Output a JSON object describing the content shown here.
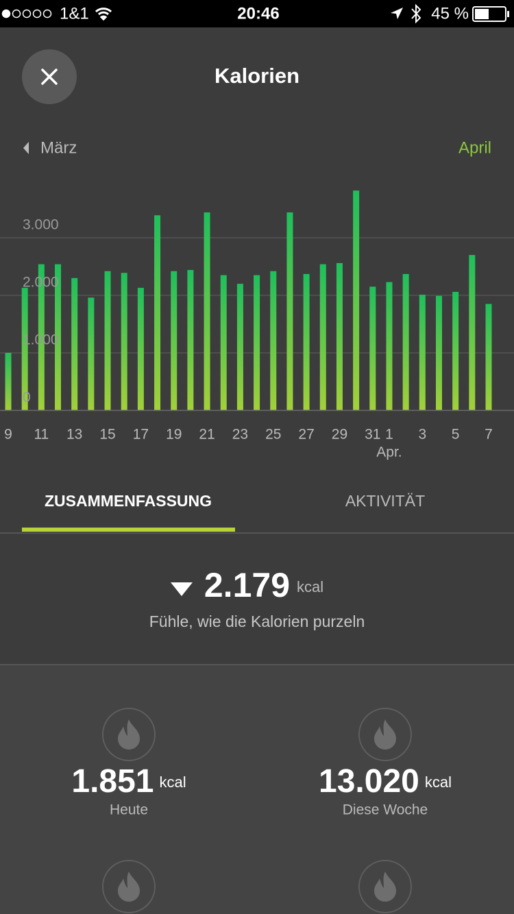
{
  "status_bar": {
    "carrier": "1&1",
    "time": "20:46",
    "battery": "45 %"
  },
  "header": {
    "title": "Kalorien"
  },
  "nav": {
    "previous": "März",
    "current": "April"
  },
  "chart_data": {
    "type": "bar",
    "categories": [
      "9",
      null,
      "11",
      null,
      "13",
      null,
      "15",
      null,
      "17",
      null,
      "19",
      null,
      "21",
      null,
      "23",
      null,
      "25",
      null,
      "27",
      null,
      "29",
      null,
      "31",
      "1",
      null,
      "3",
      null,
      "5",
      null,
      "7"
    ],
    "month_label": "Apr.",
    "values": [
      1000,
      2130,
      2540,
      2540,
      2300,
      1960,
      2420,
      2390,
      2130,
      3390,
      2420,
      2440,
      3440,
      2350,
      2200,
      2350,
      2420,
      3440,
      2370,
      2540,
      2560,
      3820,
      2150,
      2230,
      2370,
      2010,
      1990,
      2060,
      2700,
      1850
    ],
    "colors": [
      "#1fbf5c",
      "#a3d03a"
    ],
    "ylim": [
      0,
      4000
    ],
    "yticks": [
      0,
      {
        "value": 1000,
        "label": "1.000"
      },
      {
        "value": 2000,
        "label": "2.000"
      },
      {
        "value": 3000,
        "label": "3.000"
      }
    ],
    "grid": true
  },
  "tabs": [
    "ZUSAMMENFASSUNG",
    "AKTIVITÄT"
  ],
  "summary": {
    "value": "2.179",
    "unit": "kcal",
    "message": "Fühle, wie die Kalorien purzeln"
  },
  "stats": [
    {
      "value": "1.851",
      "unit": "kcal",
      "label": "Heute"
    },
    {
      "value": "13.020",
      "unit": "kcal",
      "label": "Diese Woche"
    }
  ]
}
